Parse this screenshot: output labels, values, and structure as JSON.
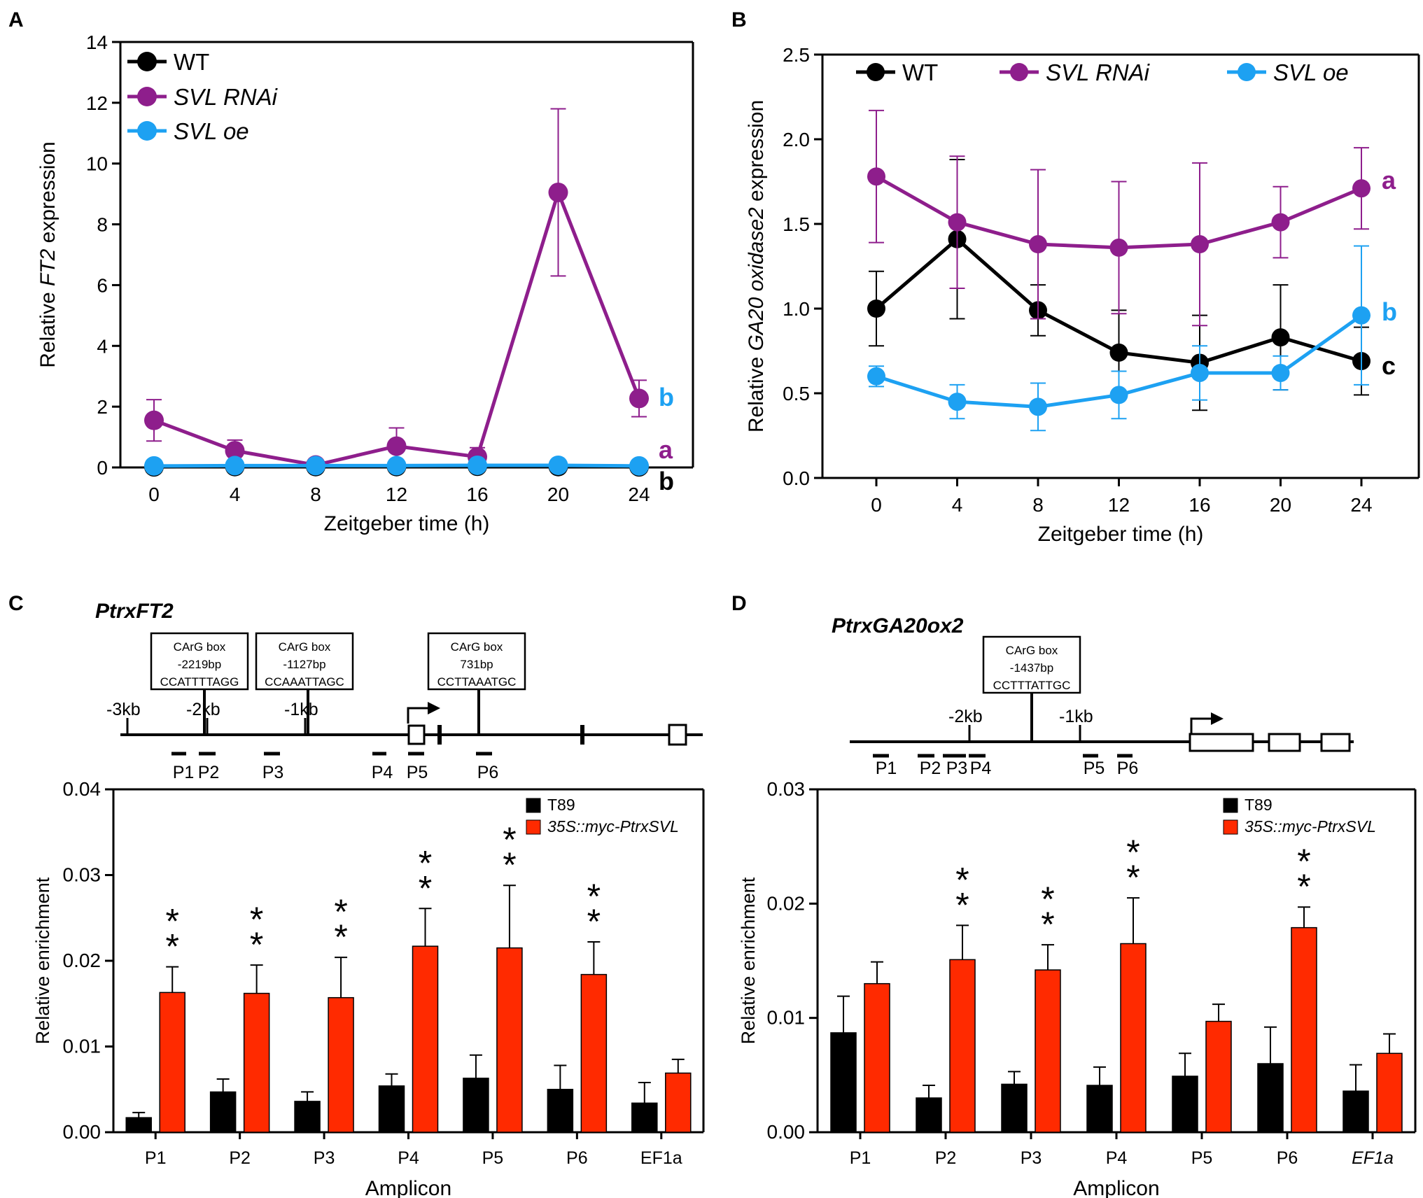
{
  "chart_data": [
    {
      "panel": "A",
      "type": "line",
      "title": "",
      "xlabel": "Zeitgeber time (h)",
      "ylabel_parts": [
        "Relative ",
        "FT2",
        " expression"
      ],
      "x": [
        0,
        4,
        8,
        12,
        16,
        20,
        24
      ],
      "xticks": [
        "0",
        "4",
        "8",
        "12",
        "16",
        "20",
        "24"
      ],
      "ylim": [
        0,
        14
      ],
      "yticks": [
        0,
        2,
        4,
        6,
        8,
        10,
        12,
        14
      ],
      "ytick_labels": [
        "0",
        "2",
        "4",
        "6",
        "8",
        "10",
        "12",
        "14"
      ],
      "legend": "top-left",
      "series": [
        {
          "name": "WT",
          "italic": false,
          "color": "#000000",
          "values": [
            0.02,
            0.03,
            0.03,
            0.03,
            0.04,
            0.03,
            0.02
          ],
          "err": [
            0,
            0,
            0,
            0,
            0,
            0,
            0
          ],
          "sig": "b"
        },
        {
          "name": "SVL RNAi",
          "italic": true,
          "color": "#8e1e8c",
          "values": [
            1.55,
            0.55,
            0.08,
            0.7,
            0.35,
            9.05,
            2.27
          ],
          "err": [
            0.68,
            0.35,
            0.1,
            0.6,
            0.3,
            2.75,
            0.6
          ],
          "sig": "a"
        },
        {
          "name": "SVL oe",
          "italic": true,
          "color": "#1da1f2",
          "values": [
            0.05,
            0.06,
            0.06,
            0.06,
            0.07,
            0.07,
            0.05
          ],
          "err": [
            0,
            0,
            0,
            0,
            0,
            0,
            0
          ],
          "sig": "b"
        }
      ]
    },
    {
      "panel": "B",
      "type": "line",
      "title": "",
      "xlabel": "Zeitgeber time (h)",
      "ylabel_parts": [
        "Relative ",
        "GA20 oxidase2",
        " expression"
      ],
      "x": [
        0,
        4,
        8,
        12,
        16,
        20,
        24
      ],
      "xticks": [
        "0",
        "4",
        "8",
        "12",
        "16",
        "20",
        "24"
      ],
      "ylim": [
        0,
        2.5
      ],
      "yticks": [
        0,
        0.5,
        1.0,
        1.5,
        2.0,
        2.5
      ],
      "ytick_labels": [
        "0.0",
        "0.5",
        "1.0",
        "1.5",
        "2.0",
        "2.5"
      ],
      "legend": "top",
      "series": [
        {
          "name": "WT",
          "italic": false,
          "color": "#000000",
          "values": [
            1.0,
            1.41,
            0.99,
            0.74,
            0.68,
            0.83,
            0.69
          ],
          "err": [
            0.22,
            0.47,
            0.15,
            0.25,
            0.28,
            0.31,
            0.2
          ],
          "sig": "c"
        },
        {
          "name": "SVL RNAi",
          "italic": true,
          "color": "#8e1e8c",
          "values": [
            1.78,
            1.51,
            1.38,
            1.36,
            1.38,
            1.51,
            1.71
          ],
          "err": [
            0.39,
            0.39,
            0.44,
            0.39,
            0.48,
            0.21,
            0.24
          ],
          "sig": "a"
        },
        {
          "name": "SVL oe",
          "italic": true,
          "color": "#1da1f2",
          "values": [
            0.6,
            0.45,
            0.42,
            0.49,
            0.62,
            0.62,
            0.96
          ],
          "err": [
            0.06,
            0.1,
            0.14,
            0.14,
            0.16,
            0.1,
            0.41
          ],
          "sig": "b"
        }
      ]
    },
    {
      "panel": "C",
      "type": "bar",
      "gene": "PtrxFT2",
      "xlabel": "Amplicon",
      "ylabel": "Relative enrichment",
      "categories": [
        "P1",
        "P2",
        "P3",
        "P4",
        "P5",
        "P6",
        "EF1a"
      ],
      "italic_categories": [],
      "ylim": [
        0,
        0.04
      ],
      "yticks": [
        0,
        0.01,
        0.02,
        0.03,
        0.04
      ],
      "ytick_labels": [
        "0.00",
        "0.01",
        "0.02",
        "0.03",
        "0.04"
      ],
      "legend": "top-right",
      "series": [
        {
          "name": "T89",
          "italic": false,
          "color": "#000000",
          "values": [
            0.0017,
            0.0047,
            0.0036,
            0.0054,
            0.0063,
            0.005,
            0.0034
          ],
          "err": [
            0.0006,
            0.0015,
            0.0011,
            0.0014,
            0.0027,
            0.0028,
            0.0024
          ]
        },
        {
          "name": "35S::myc-PtrxSVL",
          "italic": true,
          "color": "#ff2a00",
          "values": [
            0.0163,
            0.0162,
            0.0157,
            0.0217,
            0.0215,
            0.0184,
            0.0069
          ],
          "err": [
            0.003,
            0.0033,
            0.0047,
            0.0044,
            0.0073,
            0.0038,
            0.0016
          ]
        }
      ],
      "significance": [
        "**",
        "**",
        "**",
        "**",
        "**",
        "**",
        ""
      ],
      "diagram": {
        "kb_labels": [
          "-3kb",
          "-2kb",
          "-1kb"
        ],
        "carg_boxes": [
          {
            "label": "CArG box",
            "position": "-2219bp",
            "sequence": "CCATTTTAGG"
          },
          {
            "label": "CArG box",
            "position": "-1127bp",
            "sequence": "CCAAATTAGC"
          },
          {
            "label": "CArG box",
            "position": "731bp",
            "sequence": "CCTTAAATGC"
          }
        ],
        "amplicons": [
          "P1",
          "P2",
          "P3",
          "P4",
          "P5",
          "P6"
        ]
      }
    },
    {
      "panel": "D",
      "type": "bar",
      "gene": "PtrxGA20ox2",
      "xlabel": "Amplicon",
      "ylabel": "Relative enrichment",
      "categories": [
        "P1",
        "P2",
        "P3",
        "P4",
        "P5",
        "P6",
        "EF1a"
      ],
      "italic_categories": [
        "EF1a"
      ],
      "ylim": [
        0,
        0.03
      ],
      "yticks": [
        0,
        0.01,
        0.02,
        0.03
      ],
      "ytick_labels": [
        "0.00",
        "0.01",
        "0.02",
        "0.03"
      ],
      "legend": "top-right",
      "series": [
        {
          "name": "T89",
          "italic": false,
          "color": "#000000",
          "values": [
            0.0087,
            0.003,
            0.0042,
            0.0041,
            0.0049,
            0.006,
            0.0036
          ],
          "err": [
            0.0032,
            0.0011,
            0.0011,
            0.0016,
            0.002,
            0.0032,
            0.0023
          ]
        },
        {
          "name": "35S::myc-PtrxSVL",
          "italic": true,
          "color": "#ff2a00",
          "values": [
            0.013,
            0.0151,
            0.0142,
            0.0165,
            0.0097,
            0.0179,
            0.0069
          ],
          "err": [
            0.0019,
            0.003,
            0.0022,
            0.004,
            0.0015,
            0.0018,
            0.0017
          ]
        }
      ],
      "significance": [
        "",
        "**",
        "**",
        "**",
        "",
        "**",
        ""
      ],
      "diagram": {
        "kb_labels": [
          "-2kb",
          "-1kb"
        ],
        "carg_boxes": [
          {
            "label": "CArG box",
            "position": "-1437bp",
            "sequence": "CCTTTATTGC"
          }
        ],
        "amplicons": [
          "P1",
          "P2",
          "P3",
          "P4",
          "P5",
          "P6"
        ]
      }
    }
  ]
}
